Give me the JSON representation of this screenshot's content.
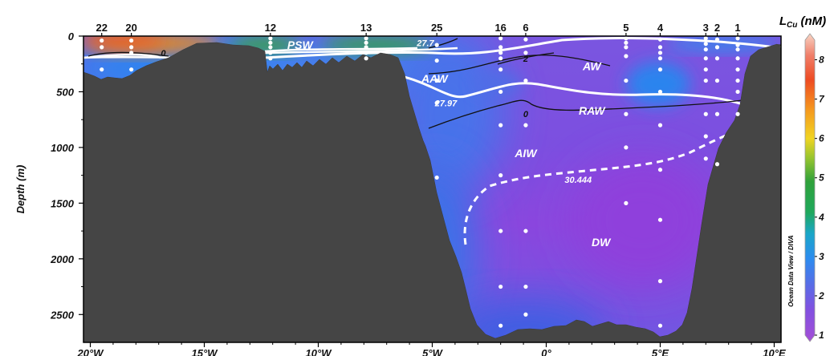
{
  "chart_data": {
    "type": "heatmap",
    "title": "",
    "ylabel": "Depth (m)",
    "xlabel": "",
    "legend_title_main": "L",
    "legend_title_sub": "Cu",
    "legend_title_unit": " (nM)",
    "colorbar": {
      "min": 1,
      "max": 8.5,
      "ticks": [
        1,
        2,
        3,
        4,
        5,
        6,
        7,
        8
      ]
    },
    "credit": "Ocean Data View / DIVA",
    "xlim": [
      -20.3,
      10.3
    ],
    "ylim": [
      0,
      2750
    ],
    "x_ticks": [
      {
        "value": -20,
        "label": "20°W"
      },
      {
        "value": -15,
        "label": "15°W"
      },
      {
        "value": -10,
        "label": "10°W"
      },
      {
        "value": -5,
        "label": "5°W"
      },
      {
        "value": 0,
        "label": "0°"
      },
      {
        "value": 5,
        "label": "5°E"
      },
      {
        "value": 10,
        "label": "10°E"
      }
    ],
    "y_ticks": [
      {
        "value": 0,
        "label": "0"
      },
      {
        "value": 500,
        "label": "500"
      },
      {
        "value": 1000,
        "label": "1000"
      },
      {
        "value": 1500,
        "label": "1500"
      },
      {
        "value": 2000,
        "label": "2000"
      },
      {
        "value": 2500,
        "label": "2500"
      }
    ],
    "stations": [
      {
        "label": "22",
        "lon": -19.5,
        "depths": [
          40,
          100,
          300
        ]
      },
      {
        "label": "20",
        "lon": -18.2,
        "depths": [
          40,
          100,
          150,
          300
        ]
      },
      {
        "label": "12",
        "lon": -12.1,
        "depths": [
          20,
          60,
          100,
          150,
          200
        ]
      },
      {
        "label": "13",
        "lon": -7.9,
        "depths": [
          20,
          60,
          100,
          150,
          200
        ]
      },
      {
        "label": "25",
        "lon": -4.8,
        "depths": [
          80,
          220,
          400,
          600,
          1270
        ]
      },
      {
        "label": "16",
        "lon": -2.0,
        "depths": [
          20,
          100,
          150,
          200,
          300,
          500,
          800,
          1250,
          1750,
          2250,
          2600
        ]
      },
      {
        "label": "6",
        "lon": -0.9,
        "depths": [
          30,
          150,
          400,
          800,
          1750,
          2250,
          2500
        ]
      },
      {
        "label": "5",
        "lon": 3.5,
        "depths": [
          20,
          60,
          100,
          180,
          400,
          700,
          1000,
          1500
        ]
      },
      {
        "label": "4",
        "lon": 5.0,
        "depths": [
          30,
          100,
          150,
          200,
          300,
          500,
          800,
          1200,
          1650,
          2200,
          2600
        ]
      },
      {
        "label": "3",
        "lon": 7.0,
        "depths": [
          20,
          70,
          120,
          200,
          300,
          400,
          700,
          900,
          1100
        ]
      },
      {
        "label": "2",
        "lon": 7.5,
        "depths": [
          30,
          100,
          200,
          400,
          700,
          1150
        ]
      },
      {
        "label": "1",
        "lon": 8.4,
        "depths": [
          20,
          80,
          120,
          200,
          300,
          400,
          500,
          700
        ]
      }
    ],
    "water_masses": [
      {
        "name": "PSW",
        "lon": -10.8,
        "depth": 80
      },
      {
        "name": "AW",
        "lon": 2.0,
        "depth": 270
      },
      {
        "name": "AAW",
        "lon": -4.9,
        "depth": 380
      },
      {
        "name": "RAW",
        "lon": 2.0,
        "depth": 670
      },
      {
        "name": "AIW",
        "lon": -0.9,
        "depth": 1050
      },
      {
        "name": "DW",
        "lon": 2.4,
        "depth": 1850
      }
    ],
    "isoline_labels": [
      {
        "text": "27.7",
        "lon": -5.3,
        "depth": 60,
        "color": "#ffffff"
      },
      {
        "text": "27.97",
        "lon": -4.4,
        "depth": 600,
        "color": "#ffffff"
      },
      {
        "text": "30.444",
        "lon": 1.4,
        "depth": 1290,
        "color": "#ffffff"
      },
      {
        "text": "0",
        "lon": -16.8,
        "depth": 150,
        "color": "#111111"
      },
      {
        "text": "2",
        "lon": -0.9,
        "depth": 200,
        "color": "#111111"
      },
      {
        "text": "0",
        "lon": -0.9,
        "depth": 700,
        "color": "#111111"
      }
    ]
  }
}
